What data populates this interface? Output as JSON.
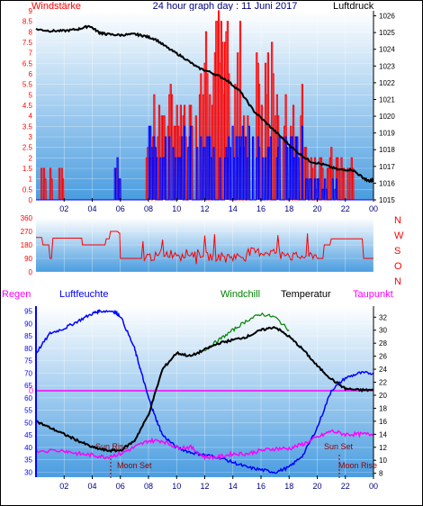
{
  "header": {
    "left_label": "Windstärke",
    "title": "24 hour graph day : 11 Juni 2017",
    "right_label": "Luftdruck"
  },
  "middle": {
    "compass_labels": [
      "N",
      "W",
      "S",
      "O",
      "N"
    ]
  },
  "bottom_header": {
    "regen": "Regen",
    "luftfeuchte": "Luftfeuchte",
    "windchill": "Windchill",
    "temperatur": "Temperatur",
    "taupunkt": "Taupunkt"
  },
  "colors": {
    "wind_gust": "#ff0000",
    "wind_avg": "#0000ff",
    "pressure": "#000000",
    "direction": "#ff0000",
    "humidity": "#0000ff",
    "temperature": "#000000",
    "windchill": "#008000",
    "dewpoint": "#ff00ff",
    "rain": "#ff00ff",
    "axis_left": "#ff0000",
    "axis_right": "#000000",
    "bg_top": "#ffffff",
    "bg_bottom": "#4a9de0"
  },
  "chart_data": [
    {
      "type": "line",
      "name": "wind_and_pressure",
      "x_ticks": [
        "02",
        "04",
        "06",
        "08",
        "10",
        "12",
        "14",
        "16",
        "18",
        "20",
        "22",
        "00"
      ],
      "y_left_ticks": [
        "0",
        "0.5",
        "1",
        "1.5",
        "2",
        "2.5",
        "3",
        "3.5",
        "4",
        "4.5",
        "5",
        "5.5",
        "6",
        "6.5",
        "7",
        "7.5",
        "8",
        "8.5",
        "9"
      ],
      "y_left_range": [
        0,
        9
      ],
      "y_right_ticks": [
        "1015",
        "1016",
        "1017",
        "1018",
        "1019",
        "1020",
        "1021",
        "1022",
        "1023",
        "1024",
        "1025",
        "1026"
      ],
      "y_right_range": [
        1015,
        1026.3
      ],
      "pressure": {
        "hours": [
          0,
          1,
          2,
          3,
          3.8,
          4.5,
          5,
          6,
          7,
          7.7,
          8.5,
          9.5,
          10.5,
          11.5,
          12.5,
          13.5,
          14.5,
          15.5,
          16.5,
          17.5,
          18.5,
          19.5,
          20.5,
          21.5,
          22.5,
          23.3,
          23.7,
          24
        ],
        "values": [
          1025.2,
          1025.1,
          1025.1,
          1025.2,
          1025.4,
          1025.0,
          1024.9,
          1024.85,
          1024.9,
          1024.8,
          1024.6,
          1024.0,
          1023.5,
          1022.9,
          1022.6,
          1022.2,
          1021.5,
          1020.3,
          1019.5,
          1018.7,
          1017.9,
          1017.3,
          1017.1,
          1016.8,
          1016.8,
          1016.3,
          1016.1,
          1016.2
        ]
      },
      "gust_segments": [
        {
          "from": 0.3,
          "to": 0.7,
          "level": 1.8
        },
        {
          "from": 0.9,
          "to": 1.3,
          "level": 1.8
        },
        {
          "from": 1.5,
          "to": 1.9,
          "level": 1.8
        },
        {
          "from": 5.5,
          "to": 6.0,
          "level": 1.8
        },
        {
          "from": 7.7,
          "to": 8.3,
          "level": 3.5
        },
        {
          "from": 8.3,
          "to": 19.0,
          "level": 5.5
        },
        {
          "from": 11.5,
          "to": 14.5,
          "level": 9.0
        },
        {
          "from": 15.5,
          "to": 17.0,
          "level": 8.0
        },
        {
          "from": 19.0,
          "to": 22.5,
          "level": 2.5
        }
      ],
      "avg_segments": [
        {
          "from": 5.5,
          "to": 6.0,
          "level": 1.8
        },
        {
          "from": 8.0,
          "to": 19.0,
          "level": 3.5
        },
        {
          "from": 19.0,
          "to": 21.5,
          "level": 1.0
        }
      ]
    },
    {
      "type": "line",
      "name": "wind_direction",
      "y_ticks": [
        "0",
        "90",
        "180",
        "270",
        "360"
      ],
      "y_range": [
        0,
        360
      ],
      "x_ticks": [
        "02",
        "04",
        "06",
        "08",
        "10",
        "12",
        "14",
        "16",
        "18",
        "20",
        "22",
        "00"
      ],
      "hours": [
        0,
        0.5,
        1.0,
        1.2,
        3.2,
        3.3,
        4.5,
        5.0,
        5.3,
        5.6,
        5.9,
        6.0,
        7.5,
        9.0,
        12.0,
        15.0,
        18.0,
        19.5,
        20.0,
        20.5,
        21.0,
        23.0,
        23.3,
        24
      ],
      "values": [
        230,
        180,
        90,
        225,
        225,
        180,
        180,
        220,
        270,
        270,
        260,
        90,
        90,
        110,
        90,
        120,
        90,
        100,
        90,
        180,
        220,
        220,
        90,
        90
      ]
    },
    {
      "type": "line",
      "name": "humidity_temperature",
      "x_ticks": [
        "02",
        "04",
        "06",
        "08",
        "10",
        "12",
        "14",
        "16",
        "18",
        "20",
        "22",
        "00"
      ],
      "y_left_ticks": [
        "30",
        "35",
        "40",
        "45",
        "50",
        "55",
        "60",
        "65",
        "70",
        "75",
        "80",
        "85",
        "90",
        "95"
      ],
      "y_left_range": [
        28,
        97
      ],
      "y_right_ticks": [
        "8",
        "10",
        "12",
        "14",
        "16",
        "18",
        "20",
        "22",
        "24",
        "26",
        "28",
        "30",
        "32"
      ],
      "y_right_range": [
        7.4,
        33.7
      ],
      "rain_marker": "0",
      "annotations": [
        "Sun Rise",
        "Moon Set",
        "Sun Set",
        "Moon Rise"
      ],
      "humidity": {
        "hours": [
          0,
          1,
          2,
          3,
          4,
          4.5,
          5.5,
          6,
          7,
          7.5,
          8,
          8.5,
          9,
          10,
          11,
          12,
          13,
          14,
          15,
          16,
          17,
          18,
          19,
          20,
          21,
          22,
          23,
          24
        ],
        "values": [
          78,
          86,
          88,
          91,
          94,
          95,
          95,
          93,
          80,
          70,
          60,
          52,
          45,
          40,
          38,
          37,
          36,
          34,
          32,
          31,
          30,
          32,
          37,
          48,
          63,
          68,
          70,
          70
        ]
      },
      "temperature": {
        "hours": [
          0,
          1,
          2,
          3,
          4,
          5,
          6,
          7,
          8,
          9,
          10,
          11,
          12,
          13,
          14,
          15,
          16,
          17,
          18,
          19,
          20,
          21,
          22,
          23,
          24
        ],
        "values": [
          16.0,
          15.0,
          14.0,
          13.0,
          12.0,
          11.5,
          11.5,
          13.0,
          17.0,
          24.0,
          26.5,
          26.0,
          27.0,
          28.0,
          28.5,
          29.0,
          30.0,
          30.5,
          29.0,
          27.0,
          24.5,
          22.5,
          21.0,
          20.8,
          20.8
        ]
      },
      "windchill": {
        "hours": [
          12.0,
          13.0,
          14.0,
          15.0,
          16.0,
          17.0,
          18.0
        ],
        "values": [
          27.0,
          28.5,
          30.0,
          31.5,
          32.5,
          32.0,
          30.0
        ]
      },
      "dewpoint": {
        "hours": [
          0,
          2,
          3,
          4,
          5,
          6,
          7,
          8,
          9,
          10,
          11,
          12,
          13,
          14,
          15,
          16,
          17,
          18,
          19,
          20,
          21,
          22,
          23,
          24
        ],
        "values": [
          11.5,
          11.5,
          11.0,
          10.8,
          10.5,
          11.0,
          12.0,
          13.0,
          13.0,
          12.0,
          12.0,
          10.5,
          10.5,
          11.0,
          11.0,
          11.5,
          11.8,
          11.8,
          12.5,
          13.5,
          14.5,
          14.0,
          14.0,
          14.0
        ]
      }
    }
  ]
}
